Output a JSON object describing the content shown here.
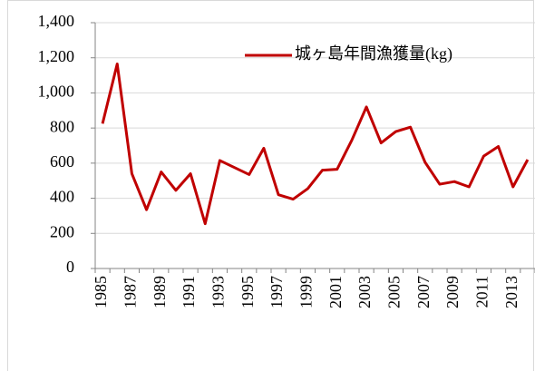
{
  "chart_data": {
    "type": "line",
    "categories": [
      "1985",
      null,
      "1987",
      null,
      "1989",
      null,
      "1991",
      null,
      "1993",
      null,
      "1995",
      null,
      "1997",
      null,
      "1999",
      null,
      "2001",
      null,
      "2003",
      null,
      "2005",
      null,
      "2007",
      null,
      "2009",
      null,
      "2011",
      null,
      "2013",
      null
    ],
    "series": [
      {
        "name": "城ヶ島年間漁獲量(kg)",
        "color": "#c00000",
        "values": [
          825,
          1165,
          540,
          335,
          550,
          445,
          540,
          255,
          615,
          575,
          535,
          685,
          420,
          395,
          455,
          560,
          565,
          730,
          920,
          715,
          780,
          805,
          605,
          480,
          495,
          465,
          640,
          695,
          465,
          620
        ]
      }
    ],
    "ylim": [
      0,
      1400
    ],
    "yticks": [
      0,
      200,
      400,
      600,
      800,
      {
        "value": 1000,
        "label": "1,000"
      },
      {
        "value": 1200,
        "label": "1,200"
      },
      {
        "value": 1400,
        "label": "1,400"
      }
    ],
    "grid": true,
    "legend": "top-right"
  }
}
